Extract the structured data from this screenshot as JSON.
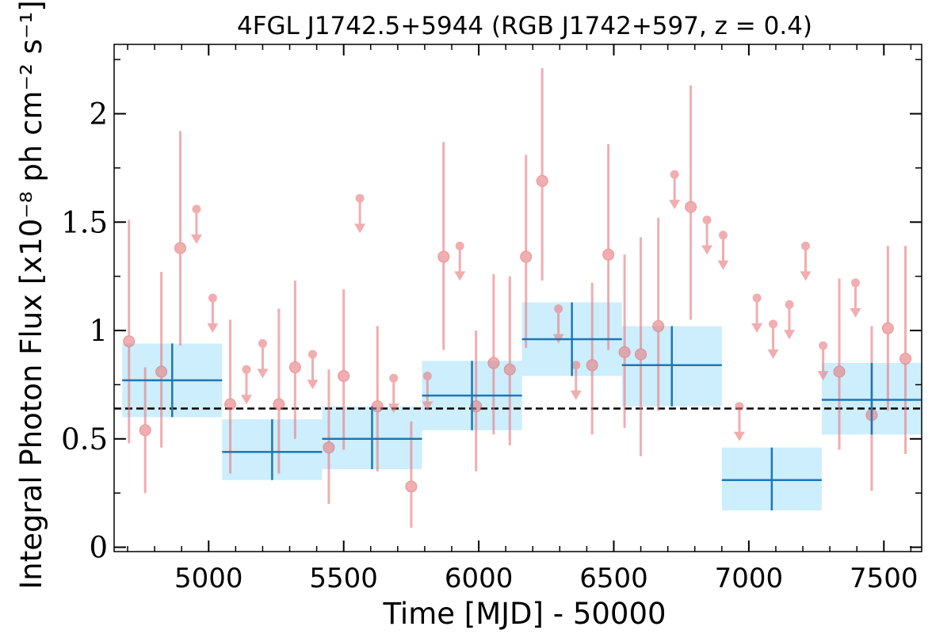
{
  "chart_data": {
    "type": "scatter",
    "title": "4FGL J1742.5+5944 (RGB J1742+597, z = 0.4)",
    "xlabel": "Time [MJD] - 50000",
    "ylabel": "Integral Photon Flux [x10⁻⁸ ph cm⁻² s⁻¹]",
    "xlim": [
      4650,
      7640
    ],
    "ylim": [
      -0.02,
      2.32
    ],
    "x_ticks": [
      5000,
      5500,
      6000,
      6500,
      7000,
      7500
    ],
    "y_ticks": [
      0,
      0.5,
      1,
      1.5,
      2
    ],
    "x_tick_labels": [
      "5000",
      "5500",
      "6000",
      "6500",
      "7000",
      "7500"
    ],
    "y_tick_labels": [
      "0",
      "0.5",
      "1",
      "1.5",
      "2"
    ],
    "grid": false,
    "colors": {
      "short_bins": "#e8787c",
      "long_bins": "#1f77b4",
      "long_bins_band": "#cdeefc",
      "mean_line": "#000000"
    },
    "mean_flux": 0.64,
    "short_bins": [
      {
        "x": 4705,
        "y": 0.95,
        "lo": 0.48,
        "hi": 1.51
      },
      {
        "x": 4765,
        "y": 0.54,
        "lo": 0.25,
        "hi": 0.83
      },
      {
        "x": 4825,
        "y": 0.81,
        "lo": 0.46,
        "hi": 1.27
      },
      {
        "x": 4895,
        "y": 1.38,
        "lo": 0.93,
        "hi": 1.92
      },
      {
        "x": 4955,
        "upper_limit": 1.56
      },
      {
        "x": 5015,
        "upper_limit": 1.15
      },
      {
        "x": 5080,
        "y": 0.66,
        "lo": 0.34,
        "hi": 1.05
      },
      {
        "x": 5140,
        "upper_limit": 0.82
      },
      {
        "x": 5200,
        "upper_limit": 0.94
      },
      {
        "x": 5260,
        "y": 0.66,
        "lo": 0.34,
        "hi": 1.1
      },
      {
        "x": 5320,
        "y": 0.83,
        "lo": 0.5,
        "hi": 1.23
      },
      {
        "x": 5385,
        "upper_limit": 0.89
      },
      {
        "x": 5445,
        "y": 0.46,
        "lo": 0.2,
        "hi": 0.82
      },
      {
        "x": 5500,
        "y": 0.79,
        "lo": 0.45,
        "hi": 1.19
      },
      {
        "x": 5560,
        "upper_limit": 1.61
      },
      {
        "x": 5625,
        "y": 0.65,
        "lo": 0.35,
        "hi": 1.02
      },
      {
        "x": 5685,
        "upper_limit": 0.78
      },
      {
        "x": 5750,
        "y": 0.28,
        "lo": 0.09,
        "hi": 0.58
      },
      {
        "x": 5810,
        "upper_limit": 0.79
      },
      {
        "x": 5870,
        "y": 1.34,
        "lo": 0.91,
        "hi": 1.87
      },
      {
        "x": 5930,
        "upper_limit": 1.39
      },
      {
        "x": 5990,
        "y": 0.65,
        "lo": 0.35,
        "hi": 1.0
      },
      {
        "x": 6055,
        "y": 0.85,
        "lo": 0.52,
        "hi": 1.26
      },
      {
        "x": 6115,
        "y": 0.82,
        "lo": 0.47,
        "hi": 1.25
      },
      {
        "x": 6175,
        "y": 1.34,
        "lo": 0.92,
        "hi": 1.81
      },
      {
        "x": 6235,
        "y": 1.69,
        "lo": 1.23,
        "hi": 2.21
      },
      {
        "x": 6295,
        "upper_limit": 1.1
      },
      {
        "x": 6360,
        "upper_limit": 0.84
      },
      {
        "x": 6420,
        "y": 0.84,
        "lo": 0.52,
        "hi": 1.22
      },
      {
        "x": 6480,
        "y": 1.35,
        "lo": 0.91,
        "hi": 1.86
      },
      {
        "x": 6540,
        "y": 0.9,
        "lo": 0.55,
        "hi": 1.35
      },
      {
        "x": 6600,
        "y": 0.89,
        "lo": 0.42,
        "hi": 1.43
      },
      {
        "x": 6665,
        "y": 1.02,
        "lo": 0.63,
        "hi": 1.52
      },
      {
        "x": 6725,
        "upper_limit": 1.72
      },
      {
        "x": 6785,
        "y": 1.57,
        "lo": 1.05,
        "hi": 2.13
      },
      {
        "x": 6845,
        "upper_limit": 1.51
      },
      {
        "x": 6905,
        "upper_limit": 1.44
      },
      {
        "x": 6965,
        "upper_limit": 0.65
      },
      {
        "x": 7030,
        "upper_limit": 1.15
      },
      {
        "x": 7090,
        "upper_limit": 1.03
      },
      {
        "x": 7150,
        "upper_limit": 1.12
      },
      {
        "x": 7210,
        "upper_limit": 1.39
      },
      {
        "x": 7275,
        "upper_limit": 0.93
      },
      {
        "x": 7335,
        "y": 0.81,
        "lo": 0.45,
        "hi": 1.24
      },
      {
        "x": 7395,
        "upper_limit": 1.22
      },
      {
        "x": 7455,
        "y": 0.61,
        "lo": 0.26,
        "hi": 1.02
      },
      {
        "x": 7515,
        "y": 1.01,
        "lo": 0.63,
        "hi": 1.39
      },
      {
        "x": 7580,
        "y": 0.87,
        "lo": 0.43,
        "hi": 1.39
      }
    ],
    "long_bins": [
      {
        "x_start": 4680,
        "x_end": 5050,
        "x": 4865,
        "y": 0.77,
        "lo": 0.6,
        "hi": 0.94
      },
      {
        "x_start": 5050,
        "x_end": 5420,
        "x": 5235,
        "y": 0.44,
        "lo": 0.31,
        "hi": 0.59
      },
      {
        "x_start": 5420,
        "x_end": 5790,
        "x": 5605,
        "y": 0.5,
        "lo": 0.36,
        "hi": 0.65
      },
      {
        "x_start": 5790,
        "x_end": 6160,
        "x": 5975,
        "y": 0.7,
        "lo": 0.54,
        "hi": 0.86
      },
      {
        "x_start": 6160,
        "x_end": 6530,
        "x": 6345,
        "y": 0.96,
        "lo": 0.79,
        "hi": 1.13
      },
      {
        "x_start": 6530,
        "x_end": 6900,
        "x": 6715,
        "y": 0.84,
        "lo": 0.65,
        "hi": 1.02
      },
      {
        "x_start": 6900,
        "x_end": 7270,
        "x": 7085,
        "y": 0.31,
        "lo": 0.17,
        "hi": 0.46
      },
      {
        "x_start": 7270,
        "x_end": 7640,
        "x": 7455,
        "y": 0.68,
        "lo": 0.52,
        "hi": 0.85
      }
    ]
  }
}
